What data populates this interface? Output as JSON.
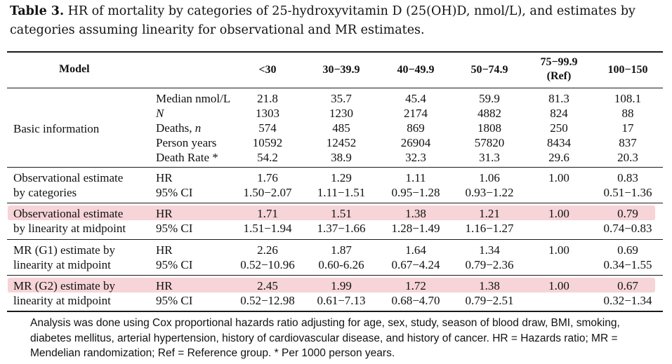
{
  "caption": {
    "label": "Table 3.",
    "text": " HR of mortality by categories of 25-hydroxyvitamin D (25(OH)D, nmol/L), and estimates by categories assuming linearity for observational and MR estimates."
  },
  "header": {
    "model": "Model",
    "cols": [
      "<30",
      "30−39.9",
      "40−49.9",
      "50−74.9",
      "75−99.9",
      "100−150"
    ],
    "ref": "(Ref)"
  },
  "basic": {
    "group": "Basic information",
    "rows": [
      {
        "label": "Median nmol/L",
        "values": [
          "21.8",
          "35.7",
          "45.4",
          "59.9",
          "81.3",
          "108.1"
        ]
      },
      {
        "label": "N",
        "values": [
          "1303",
          "1230",
          "2174",
          "4882",
          "824",
          "88"
        ]
      },
      {
        "label": "Deaths, n",
        "values": [
          "574",
          "485",
          "869",
          "1808",
          "250",
          "17"
        ]
      },
      {
        "label": "Person years",
        "values": [
          "10592",
          "12452",
          "26904",
          "57820",
          "8434",
          "837"
        ]
      },
      {
        "label": "Death Rate *",
        "values": [
          "54.2",
          "38.9",
          "32.3",
          "31.3",
          "29.6",
          "20.3"
        ]
      }
    ]
  },
  "groups": [
    {
      "line1": "Observational estimate",
      "line2": "by categories",
      "hr_label": "HR",
      "ci_label": "95% CI",
      "hr": [
        "1.76",
        "1.29",
        "1.11",
        "1.06",
        "1.00",
        "0.83"
      ],
      "ci": [
        "1.50−2.07",
        "1.11−1.51",
        "0.95−1.28",
        "0.93−1.22",
        "",
        "0.51−1.36"
      ]
    },
    {
      "line1": "Observational estimate",
      "line2": "by linearity at midpoint",
      "hr_label": "HR",
      "ci_label": "95% CI",
      "hr": [
        "1.71",
        "1.51",
        "1.38",
        "1.21",
        "1.00",
        "0.79"
      ],
      "ci": [
        "1.51−1.94",
        "1.37−1.66",
        "1.28−1.49",
        "1.16−1.27",
        "",
        "0.74−0.83"
      ]
    },
    {
      "line1": "MR (G1) estimate by",
      "line2": "linearity at midpoint",
      "hr_label": "HR",
      "ci_label": "95% CI",
      "hr": [
        "2.26",
        "1.87",
        "1.64",
        "1.34",
        "1.00",
        "0.69"
      ],
      "ci": [
        "0.52−10.96",
        "0.60-6.26",
        "0.67−4.24",
        "0.79−2.36",
        "",
        "0.34−1.55"
      ]
    },
    {
      "line1": "MR (G2) estimate by",
      "line2": "linearity at midpoint",
      "hr_label": "HR",
      "ci_label": "95% CI",
      "hr": [
        "2.45",
        "1.99",
        "1.72",
        "1.38",
        "1.00",
        "0.67"
      ],
      "ci": [
        "0.52−12.98",
        "0.61−7.13",
        "0.68−4.70",
        "0.79−2.51",
        "",
        "0.32−1.34"
      ]
    }
  ],
  "note": "Analysis was done using Cox proportional hazards ratio adjusting for age, sex, study, season of blood draw, BMI, smoking, diabetes mellitus, arterial hypertension, history of cardiovascular disease, and history of cancer. HR = Hazards ratio; MR = Mendelian randomization; Ref = Reference group. * Per 1000 person years."
}
